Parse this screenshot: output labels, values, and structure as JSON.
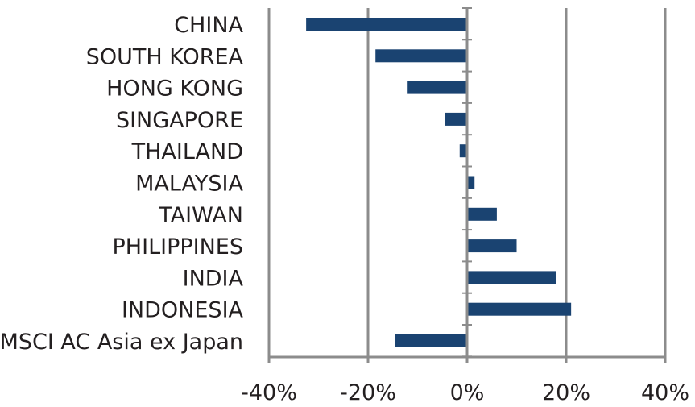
{
  "chart_data": {
    "type": "bar",
    "orientation": "horizontal",
    "categories": [
      "CHINA",
      "SOUTH KOREA",
      "HONG KONG",
      "SINGAPORE",
      "THAILAND",
      "MALAYSIA",
      "TAIWAN",
      "PHILIPPINES",
      "INDIA",
      "INDONESIA",
      "MSCI AC Asia ex Japan"
    ],
    "values": [
      -32.5,
      -18.5,
      -12,
      -4.5,
      -1.5,
      1.5,
      6,
      10,
      18,
      21,
      -14.5
    ],
    "unit": "%",
    "xlim": [
      -40,
      40
    ],
    "xticks": [
      -40,
      -20,
      0,
      20,
      40
    ],
    "xtick_labels": [
      "-40%",
      "-20%",
      "0%",
      "20%",
      "40%"
    ],
    "title": "",
    "xlabel": "",
    "ylabel": "",
    "grid": "vertical",
    "legend": "none",
    "bar_color": "#1a4371",
    "grid_color": "#8c8c8c"
  }
}
